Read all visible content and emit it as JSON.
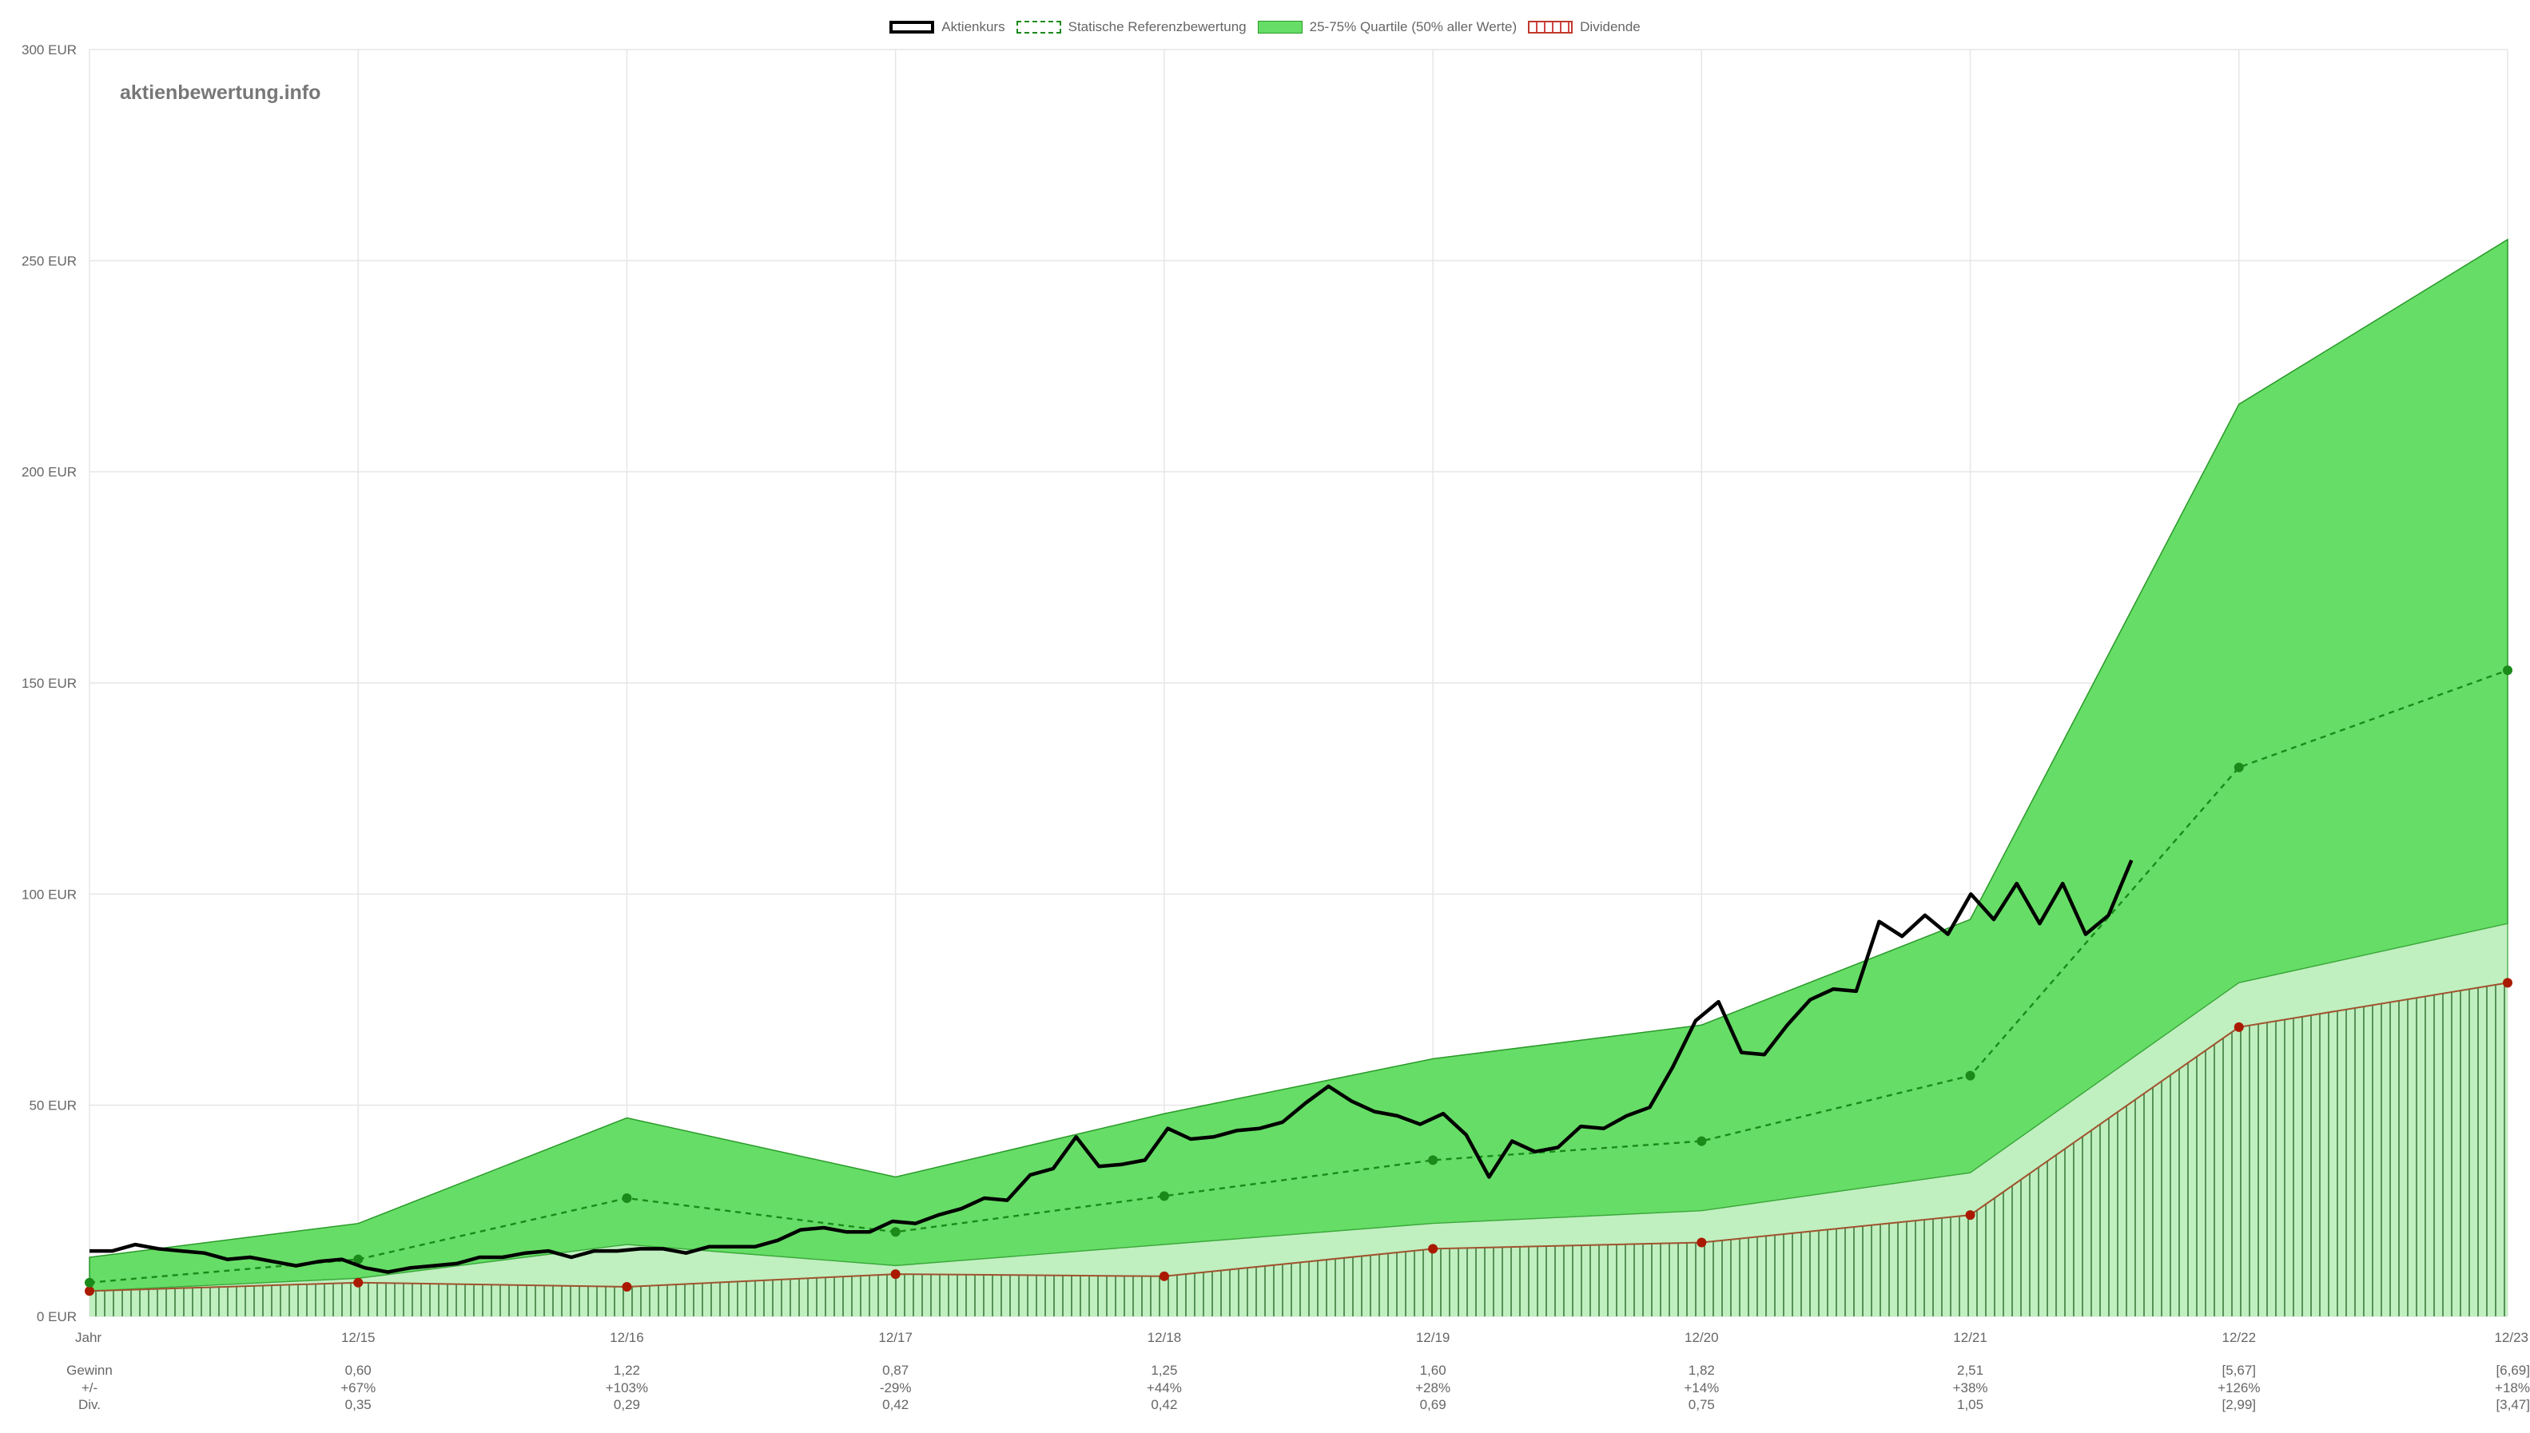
{
  "watermark": "aktienbewertung.info",
  "legend": {
    "price": "Aktienkurs",
    "reference": "Statische Referenzbewertung",
    "quartile": "25-75% Quartile (50% aller Werte)",
    "dividend": "Dividende"
  },
  "colors": {
    "price": "#000000",
    "reference": "#1a8a1a",
    "quartile_fill": "#66dd66",
    "lower_band_fill": "#c0efc0",
    "dividend_marker": "#aa1a00",
    "grid": "#e6e6e6",
    "text": "#666666"
  },
  "chart_data": {
    "type": "line",
    "y_unit": "EUR",
    "ylim": [
      0,
      300
    ],
    "y_ticks": [
      "0 EUR",
      "50 EUR",
      "100 EUR",
      "150 EUR",
      "200 EUR",
      "250 EUR",
      "300 EUR"
    ],
    "x_ticks": [
      "Jahr",
      "12/15",
      "12/16",
      "12/17",
      "12/18",
      "12/19",
      "12/20",
      "12/21",
      "12/22",
      "12/23"
    ],
    "grid": true,
    "legend_position": "top-center",
    "quartile_band": {
      "upper": [
        14,
        22,
        47,
        33,
        48,
        61,
        69,
        94,
        216,
        255
      ],
      "lower": [
        6,
        9,
        17,
        12,
        17,
        22,
        25,
        34,
        79,
        93
      ]
    },
    "reference_valuation": [
      8,
      13.5,
      28,
      20,
      28.5,
      37,
      41.5,
      57,
      130,
      153
    ],
    "dividend_value": [
      6,
      8,
      7,
      10,
      9.5,
      16,
      17.5,
      24,
      68.5,
      79
    ],
    "aktienkurs": [
      15.5,
      15.5,
      17,
      16,
      15.5,
      15,
      13.5,
      14,
      13,
      12,
      13,
      13.5,
      11.5,
      10.5,
      11.5,
      12,
      12.5,
      14,
      14,
      15,
      15.5,
      14,
      15.5,
      15.5,
      16,
      16,
      15,
      16.5,
      16.5,
      16.5,
      18,
      20.5,
      21,
      20,
      20,
      22.5,
      22,
      24,
      25.5,
      28,
      27.5,
      33.5,
      35,
      42.5,
      35.5,
      36,
      37,
      44.5,
      42,
      42.5,
      44,
      44.5,
      46,
      50.5,
      54.5,
      51,
      48.5,
      47.5,
      45.5,
      48,
      43,
      33,
      41.5,
      39,
      40,
      45,
      44.5,
      47.5,
      49.5,
      59,
      70,
      74.5,
      62.5,
      62,
      69,
      75,
      77.5,
      77,
      93.5,
      90,
      95,
      90.5,
      100,
      94,
      102.5,
      93,
      102.5,
      90.5,
      95,
      108
    ]
  },
  "table": {
    "rows": [
      {
        "label": "Gewinn",
        "values": [
          "0,60",
          "1,22",
          "0,87",
          "1,25",
          "1,60",
          "1,82",
          "2,51",
          "[5,67]",
          "[6,69]"
        ]
      },
      {
        "label": "+/-",
        "values": [
          "+67%",
          "+103%",
          "-29%",
          "+44%",
          "+28%",
          "+14%",
          "+38%",
          "+126%",
          "+18%"
        ]
      },
      {
        "label": "Div.",
        "values": [
          "0,35",
          "0,29",
          "0,42",
          "0,42",
          "0,69",
          "0,75",
          "1,05",
          "[2,99]",
          "[3,47]"
        ]
      }
    ]
  }
}
